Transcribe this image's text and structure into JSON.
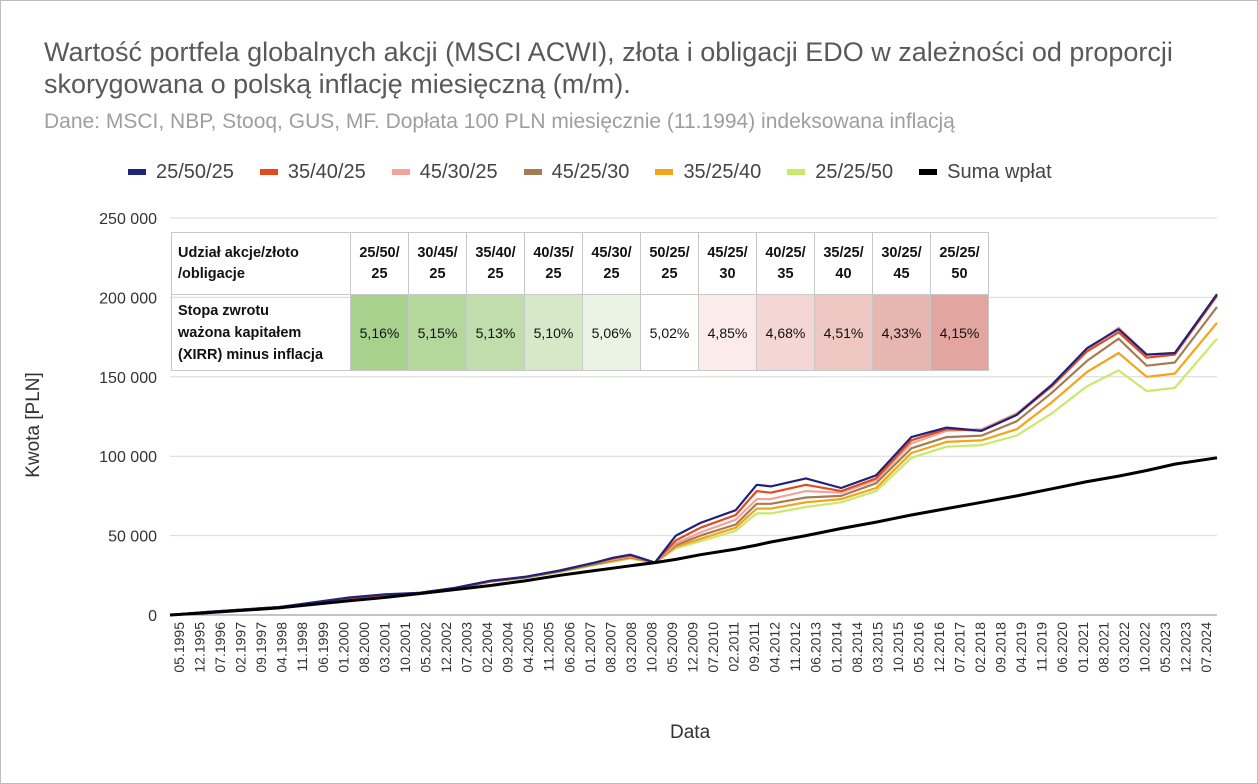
{
  "chart_data": {
    "type": "line",
    "title": "Wartość portfela globalnych akcji (MSCI ACWI), złota i obligacji EDO w zależności od proporcji skorygowana o polską inflację miesięczną (m/m).",
    "subtitle": "Dane: MSCI, NBP, Stooq, GUS, MF. Dopłata 100 PLN miesięcznie (11.1994) indeksowana inflacją",
    "xlabel": "Data",
    "ylabel": "Kwota [PLN]",
    "ylim": [
      0,
      250000
    ],
    "y_ticks": [
      "0",
      "50 000",
      "100 000",
      "150 000",
      "200 000",
      "250 000"
    ],
    "x_tick_labels": [
      "05.1995",
      "12.1995",
      "07.1996",
      "02.1997",
      "09.1997",
      "04.1998",
      "11.1998",
      "06.1999",
      "01.2000",
      "08.2000",
      "03.2001",
      "10.2001",
      "05.2002",
      "12.2002",
      "07.2003",
      "02.2004",
      "09.2004",
      "04.2005",
      "11.2005",
      "06.2006",
      "01.2007",
      "08.2007",
      "03.2008",
      "10.2008",
      "05.2009",
      "12.2009",
      "07.2010",
      "02.2011",
      "09.2011",
      "04.2012",
      "11.2012",
      "06.2013",
      "01.2014",
      "08.2014",
      "03.2015",
      "10.2015",
      "05.2016",
      "12.2016",
      "07.2017",
      "02.2018",
      "09.2018",
      "04.2019",
      "11.2019",
      "06.2020",
      "01.2021",
      "08.2021",
      "03.2022",
      "10.2022",
      "05.2023",
      "12.2023",
      "07.2024"
    ],
    "legend_position": "top",
    "grid": true,
    "x_years": [
      1994.9,
      1996,
      1998,
      2000,
      2001,
      2002,
      2003,
      2004,
      2005,
      2006,
      2007,
      2007.5,
      2008,
      2008.7,
      2009.3,
      2010,
      2011,
      2011.6,
      2012,
      2013,
      2014,
      2015,
      2016,
      2017,
      2018,
      2019,
      2020,
      2021,
      2021.9,
      2022.7,
      2023.5,
      2024.7
    ],
    "series": [
      {
        "name": "25/50/25",
        "color": "#1f237a",
        "values": [
          0,
          2000,
          5000,
          11000,
          13000,
          14000,
          17000,
          21500,
          24000,
          28000,
          33000,
          36000,
          38000,
          33000,
          50000,
          58000,
          66000,
          82000,
          81000,
          86000,
          80000,
          88000,
          112000,
          118000,
          116000,
          126000,
          145000,
          168000,
          180000,
          164000,
          165000,
          202000
        ]
      },
      {
        "name": "35/40/25",
        "color": "#e24a1f",
        "values": [
          0,
          2000,
          5000,
          10500,
          12500,
          14000,
          17000,
          21500,
          24000,
          28000,
          33000,
          35500,
          37500,
          33000,
          47000,
          55000,
          63000,
          78000,
          77000,
          82000,
          78000,
          86000,
          110000,
          117000,
          116000,
          126000,
          144000,
          166000,
          178000,
          162000,
          164000,
          201000
        ]
      },
      {
        "name": "45/30/25",
        "color": "#f2a49a",
        "values": [
          0,
          2000,
          5000,
          10500,
          12500,
          14000,
          17000,
          21500,
          24000,
          28000,
          33000,
          35000,
          37000,
          33000,
          45000,
          52000,
          60000,
          73000,
          73000,
          78000,
          77000,
          85000,
          108000,
          116000,
          117000,
          127000,
          145000,
          167000,
          181000,
          164000,
          165000,
          201000
        ]
      },
      {
        "name": "45/25/30",
        "color": "#a57c52",
        "values": [
          0,
          2000,
          5000,
          10000,
          12000,
          14000,
          16500,
          21000,
          23500,
          27500,
          32000,
          34500,
          36500,
          33000,
          44000,
          50000,
          57000,
          70000,
          70000,
          74000,
          75000,
          83000,
          105000,
          112000,
          113000,
          122000,
          140000,
          160000,
          174000,
          157000,
          159000,
          194000
        ]
      },
      {
        "name": "35/25/40",
        "color": "#f5a31a",
        "values": [
          0,
          2000,
          5000,
          10000,
          12000,
          14000,
          16500,
          21000,
          23500,
          27500,
          32000,
          34000,
          36000,
          33000,
          43000,
          48000,
          55000,
          67000,
          67000,
          71000,
          73000,
          80000,
          102000,
          109000,
          110000,
          117000,
          134000,
          153000,
          165000,
          150000,
          152000,
          184000
        ]
      },
      {
        "name": "25/25/50",
        "color": "#c9e96a",
        "values": [
          0,
          2000,
          5000,
          10000,
          12000,
          14000,
          16500,
          21000,
          23500,
          27000,
          31500,
          33500,
          35500,
          33000,
          42000,
          46500,
          53000,
          64000,
          64000,
          68000,
          71000,
          78000,
          99000,
          106000,
          107000,
          113000,
          127000,
          144000,
          154000,
          141000,
          143000,
          174000
        ]
      },
      {
        "name": "Suma wpłat",
        "color": "#000000",
        "values": [
          0,
          1500,
          4500,
          9000,
          11000,
          13500,
          16000,
          18500,
          21500,
          25000,
          28000,
          29500,
          31000,
          33000,
          35000,
          38000,
          41500,
          44000,
          46000,
          50000,
          54500,
          58500,
          63000,
          67000,
          71000,
          75000,
          79500,
          84000,
          87500,
          91000,
          95000,
          99000
        ]
      }
    ]
  },
  "table": {
    "header_label": [
      "Udział akcje/złoto",
      "/obligacje"
    ],
    "label": [
      "Stopa zwrotu",
      "ważona kapitałem",
      "(XIRR) minus inflacja"
    ],
    "columns": [
      {
        "h1": "25/50/",
        "h2": "25",
        "value": "5,16%",
        "color": "#a9d18e"
      },
      {
        "h1": "30/45/",
        "h2": "25",
        "value": "5,15%",
        "color": "#b4d79c"
      },
      {
        "h1": "35/40/",
        "h2": "25",
        "value": "5,13%",
        "color": "#c0ddab"
      },
      {
        "h1": "40/35/",
        "h2": "25",
        "value": "5,10%",
        "color": "#d5e8c8"
      },
      {
        "h1": "45/30/",
        "h2": "25",
        "value": "5,06%",
        "color": "#ebf4e4"
      },
      {
        "h1": "50/25/",
        "h2": "25",
        "value": "5,02%",
        "color": "#ffffff"
      },
      {
        "h1": "45/25/",
        "h2": "30",
        "value": "4,85%",
        "color": "#fbeceb"
      },
      {
        "h1": "40/25/",
        "h2": "35",
        "value": "4,68%",
        "color": "#f4d6d4"
      },
      {
        "h1": "35/25/",
        "h2": "40",
        "value": "4,51%",
        "color": "#eec7c3"
      },
      {
        "h1": "30/25/",
        "h2": "45",
        "value": "4,33%",
        "color": "#e8b6b1"
      },
      {
        "h1": "25/25/",
        "h2": "50",
        "value": "4,15%",
        "color": "#e2a59f"
      }
    ]
  }
}
